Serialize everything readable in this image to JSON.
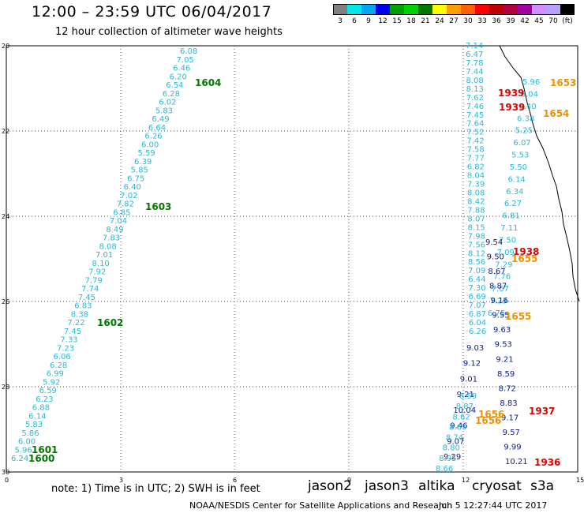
{
  "header": {
    "title": "12:00 – 23:59 UTC 06/04/2017",
    "subtitle": "12 hour collection of altimeter wave heights"
  },
  "colorbar": {
    "colors": [
      "#808080",
      "#00e5e5",
      "#00a8f0",
      "#0000f0",
      "#00a000",
      "#00d000",
      "#007800",
      "#ffff00",
      "#ffa000",
      "#ff6000",
      "#ff0000",
      "#c00000",
      "#b00040",
      "#a000a0",
      "#d090ff",
      "#b8a0ff",
      "#000000"
    ],
    "labels": [
      "3",
      "6",
      "9",
      "12",
      "15",
      "18",
      "21",
      "24",
      "27",
      "30",
      "33",
      "36",
      "39",
      "42",
      "45",
      "70",
      "(ft)"
    ]
  },
  "axes": {
    "y_ticks": [
      "20",
      "22",
      "24",
      "26",
      "28",
      "30"
    ],
    "x_ticks": [
      "0",
      "3",
      "6",
      "9",
      "12",
      "15"
    ]
  },
  "tracks": {
    "jason3_left": {
      "color": "#28b8d8",
      "values": [
        "6.08",
        "7.05",
        "6.46",
        "6.20",
        "6.54",
        "6.28",
        "6.02",
        "5.83",
        "6.49",
        "6.64",
        "6.26",
        "6.00",
        "5.59",
        "6.39",
        "5.85",
        "6.75",
        "6.40",
        "7.02",
        "7.82",
        "6.85",
        "7.04",
        "8.49",
        "7.83",
        "8.08",
        "7.01",
        "8.10",
        "7.92",
        "7.79",
        "7.74",
        "7.45",
        "6.83",
        "8.38",
        "7.22",
        "7.45",
        "7.33",
        "7.23",
        "6.06",
        "6.28",
        "6.99",
        "5.92",
        "6.59",
        "6.23",
        "6.88",
        "6.14",
        "5.83",
        "5.86",
        "6.00",
        "5.96",
        "6.24"
      ]
    },
    "track_right_a": {
      "color": "#28b8d8",
      "values": [
        "7.14",
        "6.47",
        "7.78",
        "7.44",
        "8.08",
        "8.13",
        "7.62",
        "7.46",
        "7.45",
        "7.64",
        "7.52",
        "7.42",
        "7.58",
        "7.77",
        "6.82",
        "8.04",
        "7.39",
        "8.08",
        "8.42",
        "7.88",
        "8.07",
        "8.15",
        "7.98",
        "7.56",
        "8.12",
        "8.56",
        "7.09",
        "6.44",
        "7.30",
        "6.69",
        "7.07",
        "6.87",
        "6.04",
        "6.26"
      ]
    },
    "track_right_b": {
      "color": "#28b8d8",
      "values": [
        "5.96",
        "6.04",
        "6.40",
        "6.38",
        "5.25",
        "6.07",
        "5.53",
        "5.50",
        "6.14",
        "6.34",
        "6.27",
        "6.81",
        "7.11",
        "7.50",
        "7.09",
        "7.29",
        "7.76",
        "7.67",
        "7.23",
        "6.75"
      ]
    },
    "track_right_dark": {
      "color": "#0a1a90",
      "values": [
        "9.54",
        "9.50",
        "8.67",
        "8.87",
        "9.16",
        "9.55",
        "9.63",
        "9.53",
        "9.21",
        "8.59",
        "8.72",
        "8.83",
        "9.17",
        "9.57",
        "9.99",
        "10.21"
      ]
    },
    "track_bottom_dark": {
      "color": "#0a1a90",
      "values": [
        "9.03",
        "9.12",
        "9.01",
        "9.21",
        "10.04",
        "9.46",
        "9.07",
        "9.29"
      ]
    },
    "track_bottom_cyan": {
      "color": "#28b8d8",
      "values": [
        "8.59",
        "8.87",
        "8.62",
        "8.65",
        "8.74",
        "8.80",
        "8.95",
        "8.66"
      ]
    }
  },
  "time_labels": {
    "green": [
      "1604",
      "1603",
      "1602",
      "1601",
      "1600"
    ],
    "red": [
      "1939",
      "1939",
      "1938",
      "1937",
      "1936"
    ],
    "orange": [
      "1653",
      "1654",
      "1655",
      "1655",
      "1656",
      "1656"
    ]
  },
  "footer": {
    "note": "note: 1) Time is in UTC; 2) SWH is in feet",
    "satellites": [
      {
        "name": "jason2",
        "color": "#1010d0"
      },
      {
        "name": "jason3",
        "color": "#009000"
      },
      {
        "name": "altika",
        "color": "#f09000"
      },
      {
        "name": "cryosat",
        "color": "#e00000"
      },
      {
        "name": "s3a",
        "color": "#c00000"
      }
    ],
    "credit": "NOAA/NESDIS Center for Satellite Applications and Research",
    "timestamp": "Jun  5 12:27:44 UTC 2017"
  }
}
